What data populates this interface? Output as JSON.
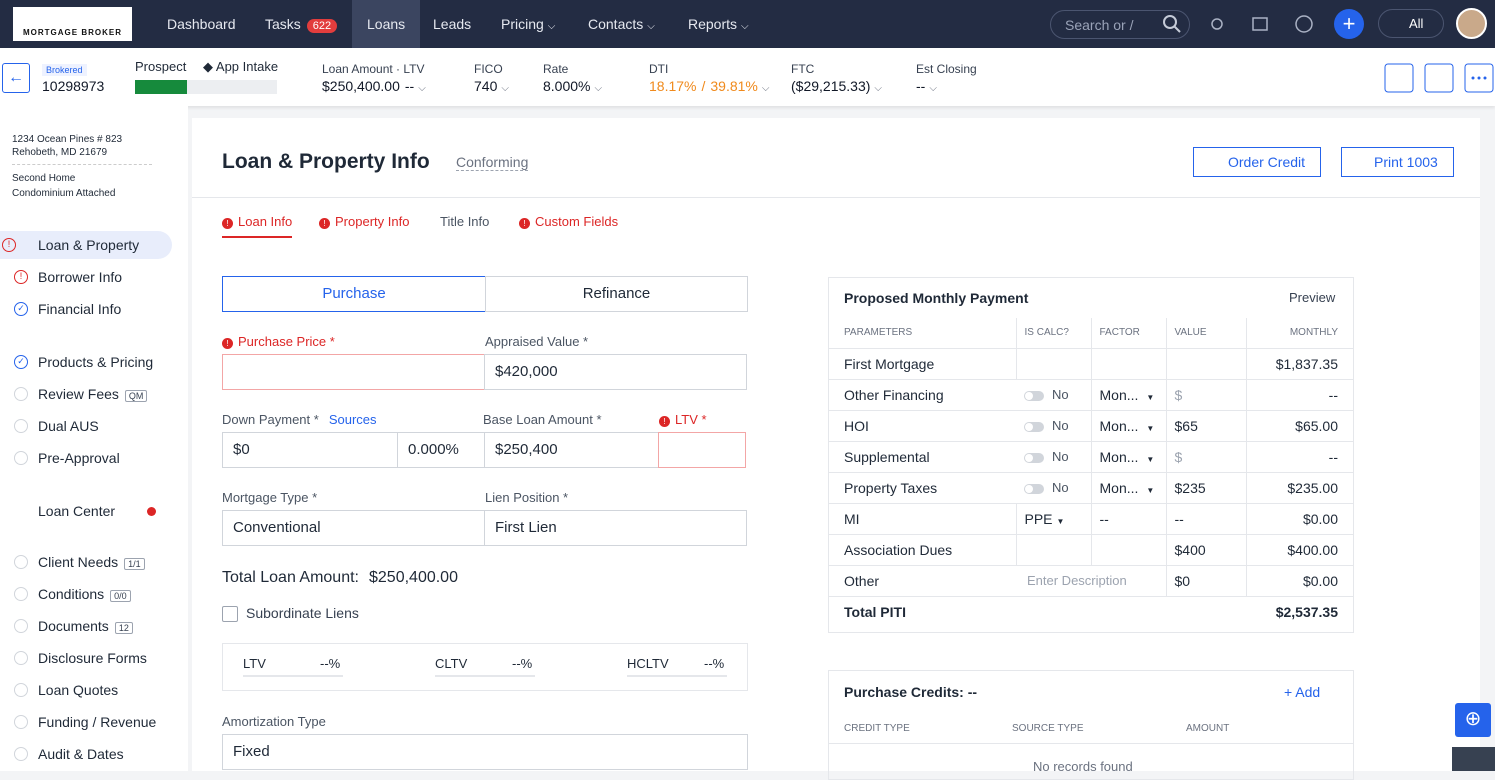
{
  "nav": {
    "logo": "MORTGAGE BROKER",
    "items": [
      "Dashboard",
      "Tasks",
      "Loans",
      "Leads",
      "Pricing",
      "Contacts",
      "Reports"
    ],
    "tasks_badge": "622",
    "search_placeholder": "Search or /",
    "scope": "All"
  },
  "loan_bar": {
    "channel": "Brokered",
    "loan_number": "10298973",
    "stage": "Prospect",
    "milestone": "App Intake",
    "loan_amount_label": "Loan Amount · LTV",
    "loan_amount": "$250,400.00",
    "ltv": "--",
    "fico_label": "FICO",
    "fico": "740",
    "rate_label": "Rate",
    "rate": "8.000%",
    "dti_label": "DTI",
    "dti_front": "18.17%",
    "dti_separator": "/",
    "dti_back": "39.81%",
    "ftc_label": "FTC",
    "ftc": "($29,215.33)",
    "est_closing_label": "Est Closing",
    "est_closing": "--"
  },
  "sidebar": {
    "address": [
      "1234 Ocean Pines # 823",
      "Rehobeth, MD 21679"
    ],
    "property": [
      "Second Home",
      "Condominium Attached"
    ],
    "steps": [
      {
        "label": "Loan & Property",
        "status": "error"
      },
      {
        "label": "Borrower Info",
        "status": "error"
      },
      {
        "label": "Financial Info",
        "status": "done"
      }
    ],
    "pricing_steps": [
      {
        "label": "Products & Pricing",
        "status": "done"
      },
      {
        "label": "Review Fees",
        "status": "todo",
        "badge": "QM"
      },
      {
        "label": "Dual AUS",
        "status": "todo"
      },
      {
        "label": "Pre-Approval",
        "status": "todo"
      }
    ],
    "loan_center": "Loan Center",
    "tools": [
      {
        "label": "Client Needs",
        "badge": "1/1"
      },
      {
        "label": "Conditions",
        "badge": "0/0"
      },
      {
        "label": "Documents",
        "badge": "12"
      },
      {
        "label": "Disclosure Forms"
      },
      {
        "label": "Loan Quotes"
      },
      {
        "label": "Funding / Revenue"
      },
      {
        "label": "Audit & Dates"
      }
    ]
  },
  "main": {
    "title": "Loan & Property Info",
    "program": "Conforming",
    "actions": [
      "Order Credit",
      "Print 1003"
    ],
    "tabs": [
      {
        "label": "Loan Info",
        "error": true
      },
      {
        "label": "Property Info",
        "error": true
      },
      {
        "label": "Title Info",
        "error": false
      },
      {
        "label": "Custom Fields",
        "error": true
      }
    ],
    "purpose": [
      "Purchase",
      "Refinance"
    ],
    "purchase_price_label": "Purchase Price *",
    "appraised_value_label": "Appraised Value *",
    "appraised_value": "$420,000",
    "down_payment_label": "Down Payment *",
    "sources": "Sources",
    "down_payment": "$0",
    "down_payment_pct": "0.000%",
    "base_loan_label": "Base Loan Amount *",
    "base_loan": "$250,400",
    "ltv_label": "LTV *",
    "mortgage_type_label": "Mortgage Type *",
    "mortgage_type": "Conventional",
    "lien_position_label": "Lien Position *",
    "lien_position": "First Lien",
    "total_loan_label": "Total Loan Amount:",
    "total_loan": "$250,400.00",
    "subordinate_liens": "Subordinate Liens",
    "ratios": [
      {
        "label": "LTV",
        "value": "--%"
      },
      {
        "label": "CLTV",
        "value": "--%"
      },
      {
        "label": "HCLTV",
        "value": "--%"
      }
    ],
    "amortization_label": "Amortization Type",
    "amortization": "Fixed"
  },
  "payment": {
    "title": "Proposed Monthly Payment",
    "preview": "Preview",
    "columns": [
      "PARAMETERS",
      "IS CALC?",
      "FACTOR",
      "VALUE",
      "MONTHLY"
    ],
    "rows": [
      {
        "parameter": "First Mortgage",
        "monthly": "$1,837.35"
      },
      {
        "parameter": "Other Financing",
        "is_calc": "No",
        "factor": "Mon...",
        "value": "$",
        "monthly": "--"
      },
      {
        "parameter": "HOI",
        "is_calc": "No",
        "factor": "Mon...",
        "value": "$65",
        "monthly": "$65.00"
      },
      {
        "parameter": "Supplemental",
        "is_calc": "No",
        "factor": "Mon...",
        "value": "$",
        "monthly": "--"
      },
      {
        "parameter": "Property Taxes",
        "is_calc": "No",
        "factor": "Mon...",
        "value": "$235",
        "monthly": "$235.00"
      },
      {
        "parameter": "MI",
        "is_calc": "PPE",
        "factor": "--",
        "value": "--",
        "monthly": "$0.00"
      },
      {
        "parameter": "Association Dues",
        "value": "$400",
        "monthly": "$400.00"
      },
      {
        "parameter": "Other",
        "description": "Enter Description",
        "value": "$0",
        "monthly": "$0.00"
      }
    ],
    "total_label": "Total PITI",
    "total": "$2,537.35"
  },
  "credits": {
    "title": "Purchase Credits: --",
    "add": "Add",
    "columns": [
      "CREDIT TYPE",
      "SOURCE TYPE",
      "AMOUNT"
    ],
    "empty": "No records found"
  }
}
